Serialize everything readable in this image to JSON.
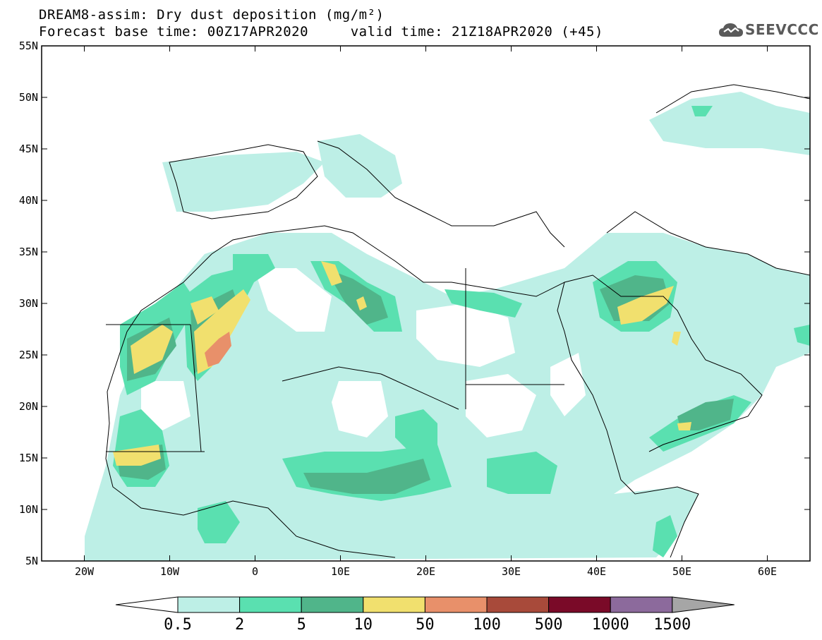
{
  "header": {
    "title_line1": "DREAM8-assim: Dry dust deposition (mg/m²)",
    "title_line2": "Forecast base time: 00Z17APR2020     valid time: 21Z18APR2020 (+45)",
    "logo_text": "SEEVCCC"
  },
  "map": {
    "lon_range": [
      -25,
      65
    ],
    "lat_range": [
      5,
      55
    ],
    "lat_ticks": [
      "55N",
      "50N",
      "45N",
      "40N",
      "35N",
      "30N",
      "25N",
      "20N",
      "15N",
      "10N",
      "5N"
    ],
    "lon_ticks": [
      "20W",
      "10W",
      "0",
      "10E",
      "20E",
      "30E",
      "40E",
      "50E",
      "60E"
    ]
  },
  "colorbar": {
    "labels": [
      "0.5",
      "2",
      "5",
      "10",
      "50",
      "100",
      "500",
      "1000",
      "1500"
    ],
    "colors": [
      "#bdefe6",
      "#5ae0b0",
      "#50b58a",
      "#f1e06e",
      "#e8906a",
      "#a84a3a",
      "#7a0a28",
      "#8c6a9c",
      "#a6a6a6"
    ],
    "lower_extend_color": "#ffffff",
    "upper_extend_color": "#a6a6a6"
  },
  "legend_icons": {
    "logo_icon": "cloud-logo-icon"
  }
}
